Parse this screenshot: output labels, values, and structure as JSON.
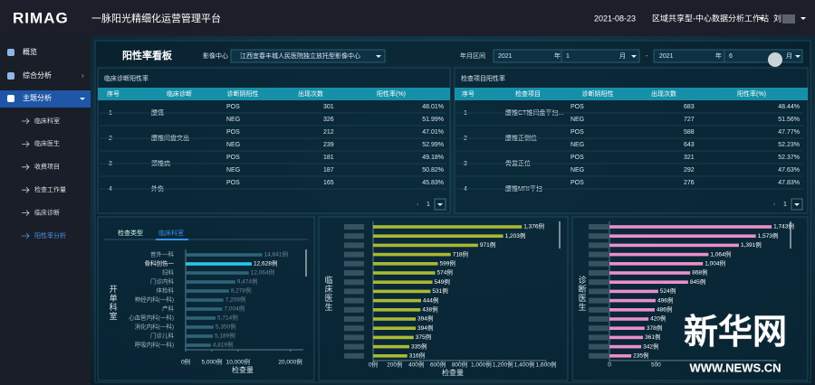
{
  "header": {
    "logo": "RIMAG",
    "title": "一脉阳光精细化运营管理平台",
    "date": "2021-08-23",
    "workspace": "区域共享型-中心数据分析工作站",
    "user": "刘"
  },
  "sidebar": {
    "items": [
      "概览",
      "综合分析",
      "主题分析"
    ],
    "subitems": [
      "临床科室",
      "临床医生",
      "收费项目",
      "检查工作量",
      "临床诊断",
      "阳性率分析"
    ]
  },
  "panel": {
    "title": "阳性率看板",
    "center_label": "影像中心",
    "center": "江西宜春丰城人民医院独立放托型影像中心",
    "range_label": "年月区间",
    "start_year": "2021",
    "start_month": "1",
    "end_year": "2021",
    "end_month": "6",
    "year_unit": "年",
    "month_unit": "月",
    "separator": "-"
  },
  "tables": [
    {
      "title": "临床诊断阳性率",
      "columns": [
        "序号",
        "临床诊断",
        "诊断阴阳性",
        "出现次数",
        "阳性率(%)"
      ],
      "page": 1,
      "rows": [
        {
          "index": 1,
          "name": "腰痛",
          "entries": [
            {
              "type": "POS",
              "count": 301,
              "rate": "48.01%"
            },
            {
              "type": "NEG",
              "count": 326,
              "rate": "51.99%"
            }
          ]
        },
        {
          "index": 2,
          "name": "腰椎间盘突出",
          "entries": [
            {
              "type": "POS",
              "count": 212,
              "rate": "47.01%"
            },
            {
              "type": "NEG",
              "count": 239,
              "rate": "52.99%"
            }
          ]
        },
        {
          "index": 3,
          "name": "颈椎病",
          "entries": [
            {
              "type": "POS",
              "count": 181,
              "rate": "49.18%"
            },
            {
              "type": "NEG",
              "count": 187,
              "rate": "50.82%"
            }
          ]
        },
        {
          "index": 4,
          "name": "外伤",
          "entries": [
            {
              "type": "POS",
              "count": 165,
              "rate": "45.83%"
            }
          ]
        }
      ]
    },
    {
      "title": "检查项目阳性率",
      "columns": [
        "序号",
        "检查项目",
        "诊断阴阳性",
        "出现次数",
        "阳性率(%)"
      ],
      "page": 1,
      "rows": [
        {
          "index": 1,
          "name": "腰椎CT椎间盘平扫...",
          "entries": [
            {
              "type": "POS",
              "count": 683,
              "rate": "48.44%"
            },
            {
              "type": "NEG",
              "count": 727,
              "rate": "51.56%"
            }
          ]
        },
        {
          "index": 2,
          "name": "腰椎正侧位",
          "entries": [
            {
              "type": "POS",
              "count": 588,
              "rate": "47.77%"
            },
            {
              "type": "NEG",
              "count": 643,
              "rate": "52.23%"
            }
          ]
        },
        {
          "index": 3,
          "name": "骨盆正位",
          "entries": [
            {
              "type": "POS",
              "count": 321,
              "rate": "52.37%"
            },
            {
              "type": "NEG",
              "count": 292,
              "rate": "47.63%"
            }
          ]
        },
        {
          "index": 4,
          "name": "腰椎MRI平扫",
          "entries": [
            {
              "type": "POS",
              "count": 276,
              "rate": "47.83%"
            }
          ]
        }
      ]
    }
  ],
  "chart_data": [
    {
      "type": "bar",
      "orientation": "horizontal",
      "tabs": [
        "检查类型",
        "临床科室"
      ],
      "active_tab": 1,
      "y_label": "开单科室",
      "x_label": "检查量",
      "categories": [
        "普外一科",
        "骨科创伤一",
        "妇科",
        "门诊内科",
        "体检科",
        "神经内科(一科)",
        "产科",
        "心血管内科(一科)",
        "消化内科(一科)",
        "门诊儿科",
        "呼吸内科(一科)"
      ],
      "values": [
        14641,
        12628,
        12064,
        9474,
        8278,
        7209,
        7004,
        5714,
        5350,
        5189,
        4819
      ],
      "value_labels": [
        "14,641例",
        "12,628例",
        "12,064例",
        "9,474例",
        "8,278例",
        "7,209例",
        "7,004例",
        "5,714例",
        "5,350例",
        "5,189例",
        "4,819例"
      ],
      "color": "#2f6478",
      "highlight_index": 1,
      "highlight_color": "#2cc7e6",
      "xlim": [
        0,
        22500
      ],
      "xticks": [
        {
          "value": 0,
          "label": "0例"
        },
        {
          "value": 5000,
          "label": "5,000例"
        },
        {
          "value": 10000,
          "label": "10,000例"
        },
        {
          "value": 20000,
          "label": "20,000例"
        }
      ]
    },
    {
      "type": "bar",
      "orientation": "horizontal",
      "y_label": "临床医生",
      "x_label": "检查量",
      "categories": [
        null,
        null,
        null,
        null,
        null,
        null,
        null,
        null,
        null,
        null,
        null,
        null,
        null,
        null,
        null
      ],
      "values": [
        1376,
        1203,
        971,
        718,
        599,
        574,
        549,
        531,
        444,
        438,
        394,
        394,
        375,
        335,
        316
      ],
      "value_labels": [
        "1,376例",
        "1,203例",
        "971例",
        "718例",
        "599例",
        "574例",
        "549例",
        "531例",
        "444例",
        "438例",
        "394例",
        "394例",
        "375例",
        "335例",
        "316例"
      ],
      "color": "#a9b935",
      "xlim": [
        0,
        1600
      ],
      "xticks": [
        {
          "value": 0,
          "label": "0例"
        },
        {
          "value": 200,
          "label": "200例"
        },
        {
          "value": 400,
          "label": "400例"
        },
        {
          "value": 600,
          "label": "600例"
        },
        {
          "value": 800,
          "label": "800例"
        },
        {
          "value": 1000,
          "label": "1,000例"
        },
        {
          "value": 1200,
          "label": "1,200例"
        },
        {
          "value": 1400,
          "label": "1,400例"
        },
        {
          "value": 1600,
          "label": "1,600例"
        }
      ]
    },
    {
      "type": "bar",
      "orientation": "horizontal",
      "y_label": "诊断医生",
      "categories": [
        null,
        null,
        null,
        null,
        null,
        null,
        null,
        null,
        null,
        null,
        null,
        null,
        null,
        null,
        null
      ],
      "values": [
        1743,
        1573,
        1391,
        1064,
        1004,
        868,
        845,
        524,
        496,
        486,
        420,
        378,
        361,
        342,
        235
      ],
      "value_labels": [
        "1,743例",
        "1,573例",
        "1,391例",
        "1,064例",
        "1,004例",
        "868例",
        "845例",
        "524例",
        "496例",
        "486例",
        "420例",
        "378例",
        "361例",
        "342例",
        "235例"
      ],
      "color": "#e98fc9",
      "xlim": [
        0,
        1800
      ],
      "xticks": [
        0,
        500
      ]
    }
  ],
  "watermark": {
    "title": "新华网",
    "url": "WWW.NEWS.CN"
  }
}
